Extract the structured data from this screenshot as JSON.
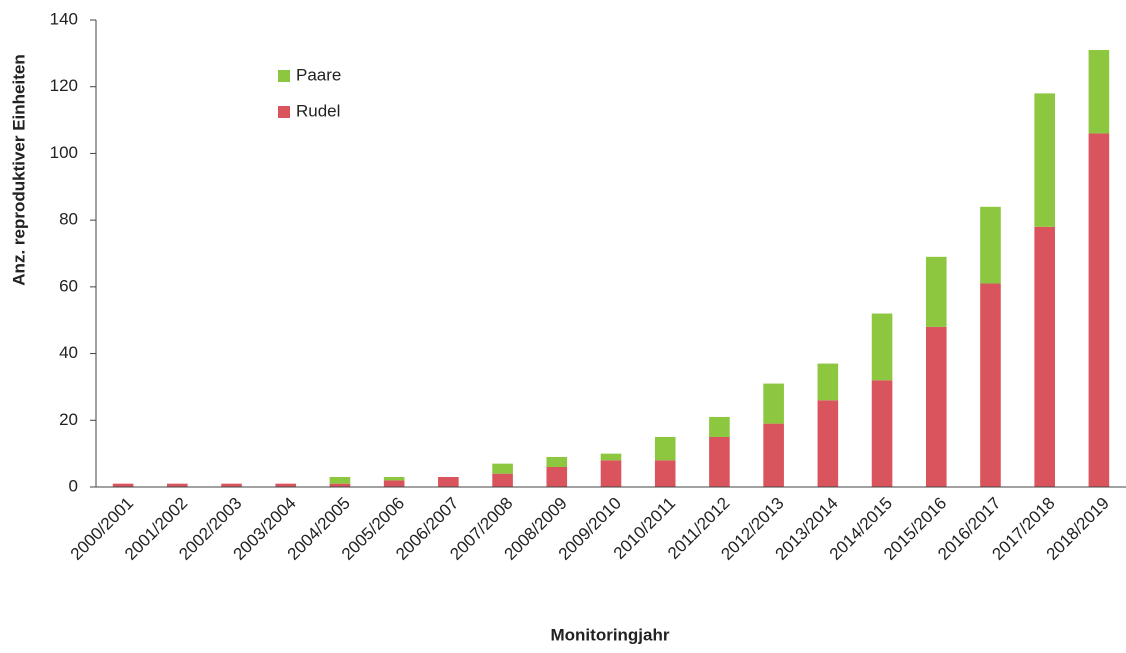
{
  "chart_data": {
    "type": "stacked_bar",
    "x_label": "Monitoringjahr",
    "y_label": "Anz. reproduktiver Einheiten",
    "categories": [
      "2000/2001",
      "2001/2002",
      "2002/2003",
      "2003/2004",
      "2004/2005",
      "2005/2006",
      "2006/2007",
      "2007/2008",
      "2008/2009",
      "2009/2010",
      "2010/2011",
      "2011/2012",
      "2012/2013",
      "2013/2014",
      "2014/2015",
      "2015/2016",
      "2016/2017",
      "2017/2018",
      "2018/2019"
    ],
    "series": [
      {
        "name": "Rudel",
        "color": "#d9545c",
        "values": [
          1,
          1,
          1,
          1,
          1,
          2,
          3,
          4,
          6,
          8,
          8,
          15,
          19,
          26,
          32,
          48,
          61,
          78,
          106
        ]
      },
      {
        "name": "Paare",
        "color": "#8dc63f",
        "values": [
          0,
          0,
          0,
          0,
          2,
          1,
          0,
          3,
          3,
          2,
          7,
          6,
          12,
          11,
          20,
          21,
          23,
          40,
          25
        ]
      }
    ],
    "legend_order": [
      1,
      0
    ],
    "ylim": [
      0,
      140
    ],
    "yticks": [
      0,
      20,
      40,
      60,
      80,
      100,
      120,
      140
    ]
  }
}
